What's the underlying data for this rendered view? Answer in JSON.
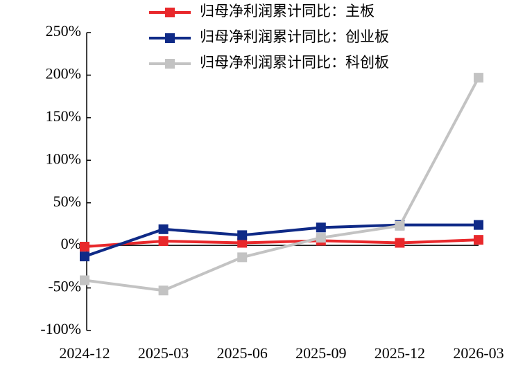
{
  "chart_data": {
    "type": "line",
    "categories": [
      "2024-12",
      "2025-03",
      "2025-06",
      "2025-09",
      "2025-12",
      "2026-03"
    ],
    "series": [
      {
        "name": "归母净利润累计同比：主板",
        "color": "#e8282b",
        "values": [
          -1.5,
          5,
          3,
          5.5,
          3,
          6.5
        ]
      },
      {
        "name": "归母净利润累计同比：创业板",
        "color": "#0f2a87",
        "values": [
          -13,
          19,
          12,
          21,
          24,
          24
        ]
      },
      {
        "name": "归母净利润累计同比：科创板",
        "color": "#c3c3c3",
        "values": [
          -41,
          -53,
          -14,
          9,
          23,
          197
        ]
      }
    ],
    "ylim": [
      -100,
      250
    ],
    "yticks": [
      {
        "value": -100,
        "label": "-100%"
      },
      {
        "value": -50,
        "label": "-50%"
      },
      {
        "value": 0,
        "label": "0%"
      },
      {
        "value": 50,
        "label": "50%"
      },
      {
        "value": 100,
        "label": "100%"
      },
      {
        "value": 150,
        "label": "150%"
      },
      {
        "value": 200,
        "label": "200%"
      },
      {
        "value": 250,
        "label": "250%"
      }
    ],
    "legend": "top-right"
  }
}
